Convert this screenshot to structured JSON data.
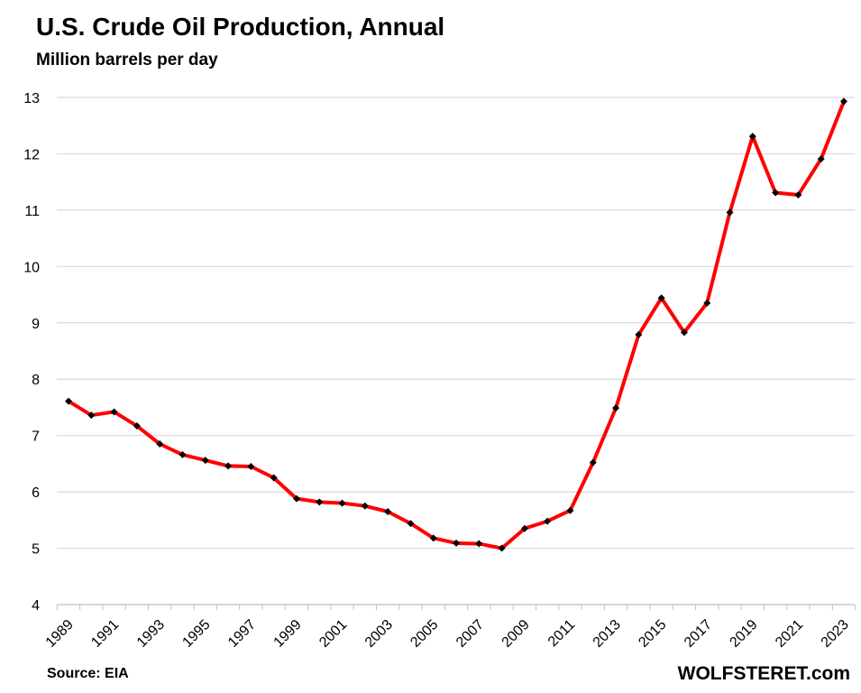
{
  "header": {
    "title": "U.S. Crude Oil Production, Annual",
    "subtitle": "Million barrels per day"
  },
  "footer": {
    "source": "Source: EIA",
    "brand": "WOLFSTERET.com"
  },
  "colors": {
    "line": "#ff0000",
    "marker": "#000000",
    "grid": "#d9d9d9"
  },
  "chart_data": {
    "type": "line",
    "title": "U.S. Crude Oil Production, Annual",
    "subtitle": "Million barrels per day",
    "xlabel": "",
    "ylabel": "",
    "ylim": [
      4,
      13
    ],
    "yticks": [
      4,
      5,
      6,
      7,
      8,
      9,
      10,
      11,
      12,
      13
    ],
    "xtick_labels": [
      "1989",
      "1991",
      "1993",
      "1995",
      "1997",
      "1999",
      "2001",
      "2003",
      "2005",
      "2007",
      "2009",
      "2011",
      "2013",
      "2015",
      "2017",
      "2019",
      "2021",
      "2023"
    ],
    "grid": true,
    "legend": "none",
    "series": [
      {
        "marker": "diamond",
        "x": [
          1989,
          1990,
          1991,
          1992,
          1993,
          1994,
          1995,
          1996,
          1997,
          1998,
          1999,
          2000,
          2001,
          2002,
          2003,
          2004,
          2005,
          2006,
          2007,
          2008,
          2009,
          2010,
          2011,
          2012,
          2013,
          2014,
          2015,
          2016,
          2017,
          2018,
          2019,
          2020,
          2021,
          2022,
          2023
        ],
        "values": [
          7.61,
          7.36,
          7.42,
          7.17,
          6.85,
          6.66,
          6.56,
          6.46,
          6.45,
          6.25,
          5.88,
          5.82,
          5.8,
          5.75,
          5.65,
          5.44,
          5.18,
          5.09,
          5.08,
          5.0,
          5.35,
          5.48,
          5.67,
          6.52,
          7.49,
          8.79,
          9.44,
          8.83,
          9.35,
          10.96,
          12.31,
          11.31,
          11.27,
          11.91,
          12.93
        ]
      }
    ]
  }
}
